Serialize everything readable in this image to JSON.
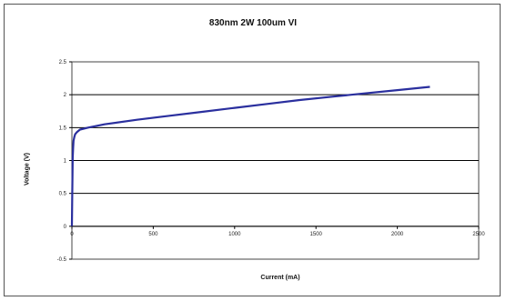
{
  "chart_data": {
    "type": "line",
    "title": "830nm 2W 100um VI",
    "xlabel": "Current (mA)",
    "ylabel": "Voltage (V)",
    "xlim": [
      0,
      2500
    ],
    "ylim": [
      -0.5,
      2.5
    ],
    "xticks": [
      "0",
      "500",
      "1000",
      "1500",
      "2000",
      "2500"
    ],
    "yticks": [
      "-0.5",
      "0",
      "0.5",
      "1",
      "1.5",
      "2",
      "2.5"
    ],
    "grid": "horizontal",
    "series": [
      {
        "color": "#2a2f9e",
        "x": [
          0,
          2,
          5,
          8,
          10,
          15,
          20,
          30,
          50,
          100,
          200,
          400,
          600,
          800,
          1000,
          1200,
          1400,
          1600,
          1800,
          2000,
          2200
        ],
        "y": [
          0,
          0.5,
          1.05,
          1.2,
          1.3,
          1.36,
          1.4,
          1.43,
          1.47,
          1.5,
          1.55,
          1.62,
          1.68,
          1.74,
          1.8,
          1.86,
          1.92,
          1.97,
          2.02,
          2.07,
          2.12
        ]
      }
    ]
  }
}
